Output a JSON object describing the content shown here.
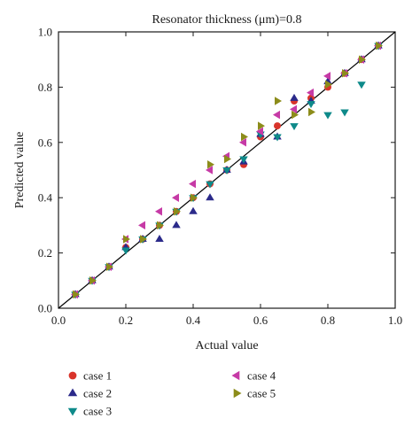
{
  "chart_data": {
    "type": "scatter",
    "title": "Resonator thickness (μm)=0.8",
    "xlabel": "Actual value",
    "ylabel": "Predicted value",
    "xlim": [
      0,
      1
    ],
    "ylim": [
      0,
      1
    ],
    "xticks": [
      "0.0",
      "0.2",
      "0.4",
      "0.6",
      "0.8",
      "1.0"
    ],
    "yticks": [
      "0.0",
      "0.2",
      "0.4",
      "0.6",
      "0.8",
      "1.0"
    ],
    "reference_line": {
      "x": [
        0,
        1
      ],
      "y": [
        0,
        1
      ],
      "color": "#000000"
    },
    "grid": false,
    "legend_position": "below",
    "series": [
      {
        "name": "case 1",
        "marker": "circle",
        "color": "#d9342b",
        "x": [
          0.05,
          0.1,
          0.15,
          0.2,
          0.25,
          0.3,
          0.35,
          0.4,
          0.45,
          0.5,
          0.55,
          0.6,
          0.65,
          0.7,
          0.75,
          0.8,
          0.85,
          0.9,
          0.95
        ],
        "y": [
          0.05,
          0.1,
          0.15,
          0.22,
          0.25,
          0.3,
          0.35,
          0.4,
          0.45,
          0.5,
          0.52,
          0.62,
          0.66,
          0.75,
          0.76,
          0.8,
          0.85,
          0.9,
          0.95
        ]
      },
      {
        "name": "case 2",
        "marker": "triangle-up",
        "color": "#2b2a8a",
        "x": [
          0.05,
          0.1,
          0.15,
          0.2,
          0.25,
          0.3,
          0.35,
          0.4,
          0.45,
          0.5,
          0.55,
          0.6,
          0.65,
          0.7,
          0.75,
          0.8,
          0.85,
          0.9,
          0.95
        ],
        "y": [
          0.05,
          0.1,
          0.15,
          0.22,
          0.25,
          0.25,
          0.3,
          0.35,
          0.4,
          0.5,
          0.53,
          0.63,
          0.62,
          0.76,
          0.75,
          0.82,
          0.85,
          0.9,
          0.95
        ]
      },
      {
        "name": "case 3",
        "marker": "triangle-down",
        "color": "#0e8a8a",
        "x": [
          0.05,
          0.1,
          0.15,
          0.2,
          0.25,
          0.3,
          0.35,
          0.4,
          0.45,
          0.5,
          0.55,
          0.6,
          0.65,
          0.7,
          0.75,
          0.8,
          0.85,
          0.9,
          0.95
        ],
        "y": [
          0.05,
          0.1,
          0.15,
          0.21,
          0.25,
          0.3,
          0.35,
          0.4,
          0.45,
          0.5,
          0.54,
          0.63,
          0.62,
          0.66,
          0.74,
          0.7,
          0.71,
          0.81,
          0.95
        ]
      },
      {
        "name": "case 4",
        "marker": "triangle-left",
        "color": "#c63aa6",
        "x": [
          0.05,
          0.1,
          0.15,
          0.2,
          0.25,
          0.3,
          0.35,
          0.4,
          0.45,
          0.5,
          0.55,
          0.6,
          0.65,
          0.7,
          0.75,
          0.8,
          0.85,
          0.9,
          0.95
        ],
        "y": [
          0.05,
          0.1,
          0.15,
          0.25,
          0.3,
          0.35,
          0.4,
          0.45,
          0.5,
          0.55,
          0.6,
          0.64,
          0.7,
          0.72,
          0.78,
          0.84,
          0.85,
          0.9,
          0.95
        ]
      },
      {
        "name": "case 5",
        "marker": "triangle-right",
        "color": "#8c8c1a",
        "x": [
          0.05,
          0.1,
          0.15,
          0.2,
          0.25,
          0.3,
          0.35,
          0.4,
          0.45,
          0.5,
          0.55,
          0.6,
          0.65,
          0.7,
          0.75,
          0.8,
          0.85,
          0.9,
          0.95
        ],
        "y": [
          0.05,
          0.1,
          0.15,
          0.25,
          0.25,
          0.3,
          0.35,
          0.4,
          0.52,
          0.54,
          0.62,
          0.66,
          0.75,
          0.7,
          0.71,
          0.81,
          0.85,
          0.9,
          0.95
        ]
      }
    ]
  }
}
